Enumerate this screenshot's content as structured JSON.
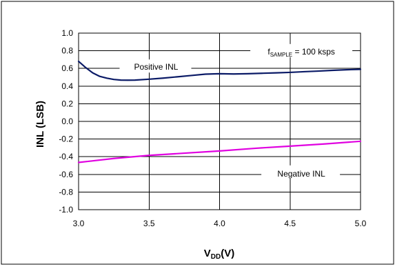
{
  "chart_data": {
    "type": "line",
    "title": "",
    "xlabel": {
      "main": "V",
      "sub": "DD",
      "suffix": "(V)"
    },
    "ylabel": "INL (LSB)",
    "xlim": [
      3.0,
      5.0
    ],
    "ylim": [
      -1.0,
      1.0
    ],
    "x_ticks": [
      3.0,
      3.5,
      4.0,
      4.5,
      5.0
    ],
    "x_tick_labels": [
      "3.0",
      "3.5",
      "4.0",
      "4.5",
      "5.0"
    ],
    "y_ticks": [
      1.0,
      0.8,
      0.6,
      0.4,
      0.2,
      0.0,
      -0.2,
      -0.4,
      -0.6,
      -0.8,
      -1.0
    ],
    "y_tick_labels": [
      "1.0",
      "0.8",
      "0.6",
      "0.4",
      "0.2",
      "0.0",
      "-0.2",
      "-0.4",
      "-0.6",
      "-0.8",
      "-1.0"
    ],
    "grid": true,
    "series": [
      {
        "name": "Positive INL",
        "color": "#0a1a66",
        "x": [
          3.0,
          3.05,
          3.1,
          3.15,
          3.2,
          3.25,
          3.3,
          3.35,
          3.4,
          3.5,
          3.6,
          3.7,
          3.8,
          3.9,
          4.0,
          4.1,
          4.2,
          4.3,
          4.4,
          4.5,
          4.6,
          4.7,
          4.8,
          4.9,
          5.0
        ],
        "y": [
          0.68,
          0.61,
          0.55,
          0.51,
          0.49,
          0.475,
          0.468,
          0.467,
          0.468,
          0.478,
          0.49,
          0.505,
          0.52,
          0.535,
          0.54,
          0.537,
          0.54,
          0.545,
          0.55,
          0.555,
          0.563,
          0.57,
          0.578,
          0.585,
          0.59
        ]
      },
      {
        "name": "Negative INL",
        "color": "#e000e0",
        "x": [
          3.0,
          3.25,
          3.5,
          3.75,
          4.0,
          4.25,
          4.5,
          4.75,
          5.0
        ],
        "y": [
          -0.465,
          -0.42,
          -0.385,
          -0.36,
          -0.335,
          -0.305,
          -0.28,
          -0.255,
          -0.225
        ]
      }
    ],
    "annotations": [
      {
        "id": "positive",
        "text": "Positive INL",
        "x": 3.55,
        "y": 0.6
      },
      {
        "id": "negative",
        "text": "Negative INL",
        "x": 4.58,
        "y": -0.6
      },
      {
        "id": "fsample",
        "main": "f",
        "sub": "SAMPLE",
        "suffix": " = 100 ksps",
        "x": 4.58,
        "y": 0.775
      }
    ]
  }
}
